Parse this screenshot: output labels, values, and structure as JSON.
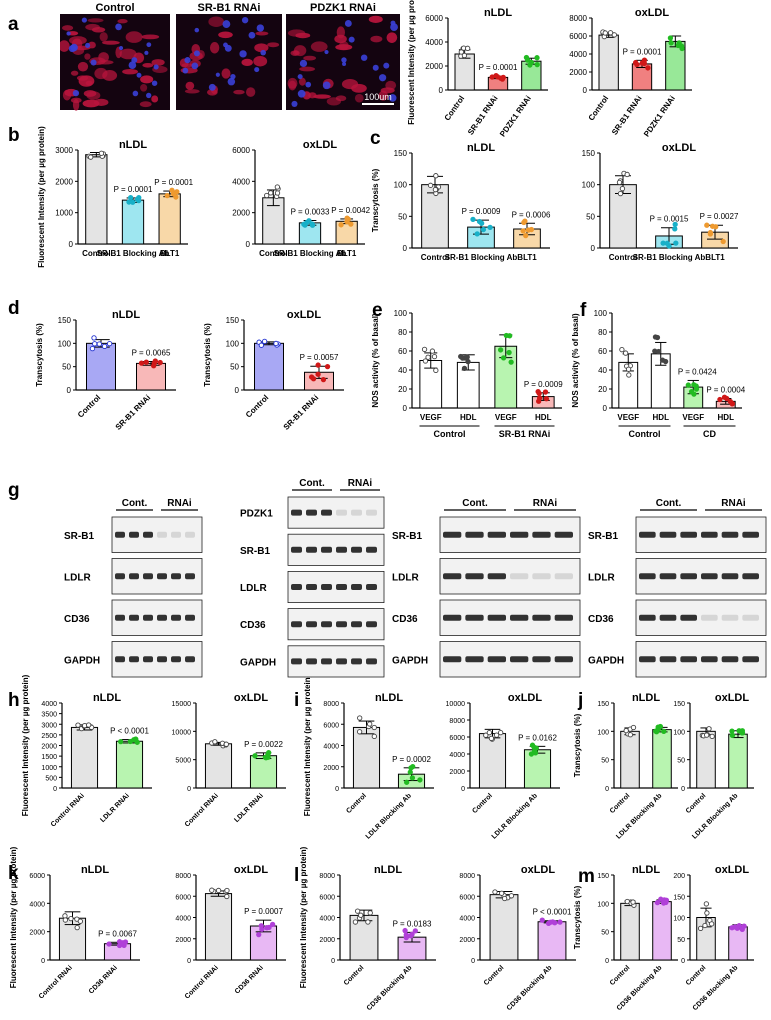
{
  "panel_letters": [
    "a",
    "b",
    "c",
    "d",
    "e",
    "f",
    "g",
    "h",
    "i",
    "j",
    "k",
    "l",
    "m"
  ],
  "colors": {
    "control": "#e4e4e4",
    "srb1_rnai": "#f08080",
    "pdzk1_rnai": "#98e898",
    "blocking": "#9ee6f0",
    "blt1": "#f8d8a8",
    "blue": "#a8a8f4",
    "pink": "#f8b8b8",
    "green": "#b8f4b0",
    "violet": "#e8b8f4",
    "dot_red": "#d01818",
    "dot_green": "#22bb22",
    "dot_teal": "#18b0c8",
    "dot_orange": "#ee9a30",
    "dot_blue": "#2030d0",
    "dot_purple": "#b040d8"
  },
  "panel_a": {
    "micrograph_labels": [
      "Control",
      "SR-B1 RNAi",
      "PDZK1 RNAi"
    ],
    "scale_bar": "100um"
  },
  "panel_g": {
    "blots": [
      {
        "groups": [
          "Cont.",
          "RNAi"
        ],
        "rows": [
          "SR-B1",
          "LDLR",
          "CD36",
          "GAPDH"
        ]
      },
      {
        "groups": [
          "Cont.",
          "RNAi"
        ],
        "rows": [
          "PDZK1",
          "SR-B1",
          "LDLR",
          "CD36",
          "GAPDH"
        ]
      },
      {
        "groups": [
          "Cont.",
          "RNAi"
        ],
        "rows": [
          "SR-B1",
          "LDLR",
          "CD36",
          "GAPDH"
        ]
      },
      {
        "groups": [
          "Cont.",
          "RNAi"
        ],
        "rows": [
          "SR-B1",
          "LDLR",
          "CD36",
          "GAPDH"
        ]
      }
    ]
  },
  "chart_data": [
    {
      "type": "bar",
      "panel": "a",
      "title": "nLDL",
      "ylabel": "Fluorescent Intensity (per µg protein)",
      "ylim": [
        0,
        6000
      ],
      "yticks": [
        "0",
        "2000",
        "4000",
        "6000"
      ],
      "categories": [
        "Control",
        "SR-B1 RNAi",
        "PDZK1 RNAi"
      ],
      "values": [
        3000,
        1050,
        2400
      ],
      "errors": [
        350,
        100,
        250
      ],
      "annotations": [
        "",
        "P = 0.0001",
        ""
      ]
    },
    {
      "type": "bar",
      "panel": "a",
      "title": "oxLDL",
      "ylabel": "",
      "ylim": [
        0,
        8000
      ],
      "yticks": [
        "0",
        "2000",
        "4000",
        "6000",
        "8000"
      ],
      "categories": [
        "Control",
        "SR-B1 RNAi",
        "PDZK1 RNAi"
      ],
      "values": [
        6100,
        2900,
        5400
      ],
      "errors": [
        250,
        400,
        600
      ],
      "annotations": [
        "",
        "P = 0.0001",
        ""
      ]
    },
    {
      "type": "bar",
      "panel": "b",
      "title": "nLDL",
      "ylabel": "Fluorescent Intensity (per µg protein)",
      "ylim": [
        0,
        3000
      ],
      "yticks": [
        "0",
        "1000",
        "2000",
        "3000"
      ],
      "categories": [
        "Control",
        "SR-B1 Blocking Ab",
        "BLT1"
      ],
      "values": [
        2850,
        1400,
        1600
      ],
      "errors": [
        70,
        70,
        90
      ],
      "annotations": [
        "",
        "P = 0.0001",
        "P = 0.0001"
      ]
    },
    {
      "type": "bar",
      "panel": "b",
      "title": "oxLDL",
      "ylabel": "",
      "ylim": [
        0,
        6000
      ],
      "yticks": [
        "0",
        "2000",
        "4000",
        "6000"
      ],
      "categories": [
        "Control",
        "SR-B1 Blocking Ab",
        "BLT1"
      ],
      "values": [
        2950,
        1350,
        1450
      ],
      "errors": [
        500,
        150,
        150
      ],
      "annotations": [
        "",
        "P = 0.0033",
        "P = 0.0042"
      ]
    },
    {
      "type": "bar",
      "panel": "c",
      "title": "nLDL",
      "ylabel": "Transcytosis (%)",
      "ylim": [
        0,
        150
      ],
      "yticks": [
        "0",
        "50",
        "100",
        "150"
      ],
      "categories": [
        "Control",
        "SR-B1 Blocking Ab",
        "BLT1"
      ],
      "values": [
        100,
        33,
        30
      ],
      "errors": [
        13,
        11,
        9
      ],
      "annotations": [
        "",
        "P = 0.0009",
        "P = 0.0006"
      ]
    },
    {
      "type": "bar",
      "panel": "c",
      "title": "oxLDL",
      "ylabel": "",
      "ylim": [
        0,
        150
      ],
      "yticks": [
        "0",
        "50",
        "100",
        "150"
      ],
      "categories": [
        "Control",
        "SR-B1 Blocking Ab",
        "BLT1"
      ],
      "values": [
        100,
        19,
        25
      ],
      "errors": [
        14,
        13,
        11
      ],
      "annotations": [
        "",
        "P = 0.0015",
        "P = 0.0027"
      ]
    },
    {
      "type": "bar",
      "panel": "d",
      "title": "nLDL",
      "ylabel": "Transcytosis (%)",
      "ylim": [
        0,
        150
      ],
      "yticks": [
        "0",
        "50",
        "100",
        "150"
      ],
      "categories": [
        "Control",
        "SR-B1 RNAi"
      ],
      "values": [
        100,
        57
      ],
      "errors": [
        8,
        4
      ],
      "annotations": [
        "",
        "P = 0.0065"
      ]
    },
    {
      "type": "bar",
      "panel": "d",
      "title": "oxLDL",
      "ylabel": "Transcytosis (%)",
      "ylim": [
        0,
        150
      ],
      "yticks": [
        "0",
        "50",
        "100",
        "150"
      ],
      "categories": [
        "Control",
        "SR-B1 RNAi"
      ],
      "values": [
        100,
        38
      ],
      "errors": [
        3,
        13
      ],
      "annotations": [
        "",
        "P = 0.0057"
      ]
    },
    {
      "type": "bar",
      "panel": "e",
      "title": "",
      "ylabel": "NOS activity (% of basal)",
      "ylim": [
        0,
        100
      ],
      "yticks": [
        "0",
        "20",
        "40",
        "60",
        "80",
        "100"
      ],
      "categories": [
        "VEGF",
        "HDL",
        "VEGF",
        "HDL"
      ],
      "groups": [
        "Control",
        "SR-B1 RNAi"
      ],
      "values": [
        50,
        48,
        65,
        12
      ],
      "errors": [
        8,
        8,
        12,
        4
      ],
      "annotations": [
        "",
        "",
        "",
        "P = 0.0009"
      ]
    },
    {
      "type": "bar",
      "panel": "f",
      "title": "",
      "ylabel": "NOS activity (% of basal)",
      "ylim": [
        0,
        100
      ],
      "yticks": [
        "0",
        "20",
        "40",
        "60",
        "80",
        "100"
      ],
      "categories": [
        "VEGF",
        "HDL",
        "VEGF",
        "HDL"
      ],
      "groups": [
        "Control",
        "CD"
      ],
      "values": [
        48,
        57,
        22,
        7
      ],
      "errors": [
        9,
        12,
        7,
        3
      ],
      "annotations": [
        "",
        "",
        "P = 0.0424",
        "P = 0.0004"
      ]
    },
    {
      "type": "bar",
      "panel": "h",
      "title": "nLDL",
      "ylabel": "Fluorescent Intensity (per µg protein)",
      "ylim": [
        0,
        4000
      ],
      "yticks": [
        "0",
        "500",
        "1000",
        "1500",
        "2000",
        "2500",
        "3000",
        "3500",
        "4000"
      ],
      "categories": [
        "Control RNAi",
        "LDLR RNAi"
      ],
      "values": [
        2850,
        2200
      ],
      "errors": [
        120,
        80
      ],
      "annotations": [
        "",
        "P < 0.0001"
      ]
    },
    {
      "type": "bar",
      "panel": "h",
      "title": "oxLDL",
      "ylabel": "",
      "ylim": [
        0,
        15000
      ],
      "yticks": [
        "0",
        "5000",
        "10000",
        "15000"
      ],
      "categories": [
        "Control RNAi",
        "LDLR RNAi"
      ],
      "values": [
        7800,
        5700
      ],
      "errors": [
        250,
        500
      ],
      "annotations": [
        "",
        "P = 0.0022"
      ]
    },
    {
      "type": "bar",
      "panel": "i",
      "title": "nLDL",
      "ylabel": "Fluorescent Intensity (per µg protein)",
      "ylim": [
        0,
        8000
      ],
      "yticks": [
        "0",
        "2000",
        "4000",
        "6000",
        "8000"
      ],
      "categories": [
        "Control",
        "LDLR Blocking Ab"
      ],
      "values": [
        5700,
        1300
      ],
      "errors": [
        600,
        600
      ],
      "annotations": [
        "",
        "P = 0.0002"
      ]
    },
    {
      "type": "bar",
      "panel": "i",
      "title": "oxLDL",
      "ylabel": "",
      "ylim": [
        0,
        10000
      ],
      "yticks": [
        "0",
        "2000",
        "4000",
        "6000",
        "8000",
        "10000"
      ],
      "categories": [
        "Control",
        "LDLR Blocking Ab"
      ],
      "values": [
        6400,
        4500
      ],
      "errors": [
        500,
        400
      ],
      "annotations": [
        "",
        "P = 0.0162"
      ]
    },
    {
      "type": "bar",
      "panel": "j",
      "title": "nLDL",
      "ylabel": "Transcytosis (%)",
      "ylim": [
        0,
        150
      ],
      "yticks": [
        "0",
        "50",
        "100",
        "150"
      ],
      "categories": [
        "Control",
        "LDLR Blocking Ab"
      ],
      "values": [
        100,
        103
      ],
      "errors": [
        6,
        4
      ],
      "annotations": [
        "",
        ""
      ]
    },
    {
      "type": "bar",
      "panel": "j",
      "title": "oxLDL",
      "ylabel": "",
      "ylim": [
        0,
        150
      ],
      "yticks": [
        "0",
        "50",
        "100",
        "150"
      ],
      "categories": [
        "Control",
        "LDLR Blocking Ab"
      ],
      "values": [
        100,
        95
      ],
      "errors": [
        6,
        6
      ],
      "annotations": [
        "",
        ""
      ]
    },
    {
      "type": "bar",
      "panel": "k",
      "title": "nLDL",
      "ylabel": "Fluorescent Intensity (per µg protein)",
      "ylim": [
        0,
        6000
      ],
      "yticks": [
        "0",
        "2000",
        "4000",
        "6000"
      ],
      "categories": [
        "Control RNAi",
        "CD36 RNAi"
      ],
      "values": [
        2950,
        1150
      ],
      "errors": [
        450,
        100
      ],
      "annotations": [
        "",
        "P = 0.0067"
      ]
    },
    {
      "type": "bar",
      "panel": "k",
      "title": "oxLDL",
      "ylabel": "",
      "ylim": [
        0,
        8000
      ],
      "yticks": [
        "0",
        "2000",
        "4000",
        "6000",
        "8000"
      ],
      "categories": [
        "Control RNAi",
        "CD36 RNAi"
      ],
      "values": [
        6250,
        3200
      ],
      "errors": [
        250,
        550
      ],
      "annotations": [
        "",
        "P = 0.0007"
      ]
    },
    {
      "type": "bar",
      "panel": "l",
      "title": "nLDL",
      "ylabel": "Fluorescent Intensity (per µg protein)",
      "ylim": [
        0,
        8000
      ],
      "yticks": [
        "0",
        "2000",
        "4000",
        "6000",
        "8000"
      ],
      "categories": [
        "Control",
        "CD36 Blocking Ab"
      ],
      "values": [
        4200,
        2150
      ],
      "errors": [
        500,
        450
      ],
      "annotations": [
        "",
        "P = 0.0183"
      ]
    },
    {
      "type": "bar",
      "panel": "l",
      "title": "oxLDL",
      "ylabel": "",
      "ylim": [
        0,
        8000
      ],
      "yticks": [
        "0",
        "2000",
        "4000",
        "6000",
        "8000"
      ],
      "categories": [
        "Control",
        "CD36 Blocking Ab"
      ],
      "values": [
        6150,
        3600
      ],
      "errors": [
        300,
        100
      ],
      "annotations": [
        "",
        "P < 0.0001"
      ]
    },
    {
      "type": "bar",
      "panel": "m",
      "title": "nLDL",
      "ylabel": "Transcytosis (%)",
      "ylim": [
        0,
        150
      ],
      "yticks": [
        "0",
        "50",
        "100",
        "150"
      ],
      "categories": [
        "Control",
        "CD36 Blocking Ab"
      ],
      "values": [
        100,
        103
      ],
      "errors": [
        4,
        3
      ],
      "annotations": [
        "",
        ""
      ]
    },
    {
      "type": "bar",
      "panel": "m",
      "title": "oxLDL",
      "ylabel": "",
      "ylim": [
        0,
        200
      ],
      "yticks": [
        "0",
        "50",
        "100",
        "150",
        "200"
      ],
      "categories": [
        "Control",
        "CD36 Blocking Ab"
      ],
      "values": [
        100,
        78
      ],
      "errors": [
        22,
        5
      ],
      "annotations": [
        "",
        ""
      ]
    }
  ]
}
